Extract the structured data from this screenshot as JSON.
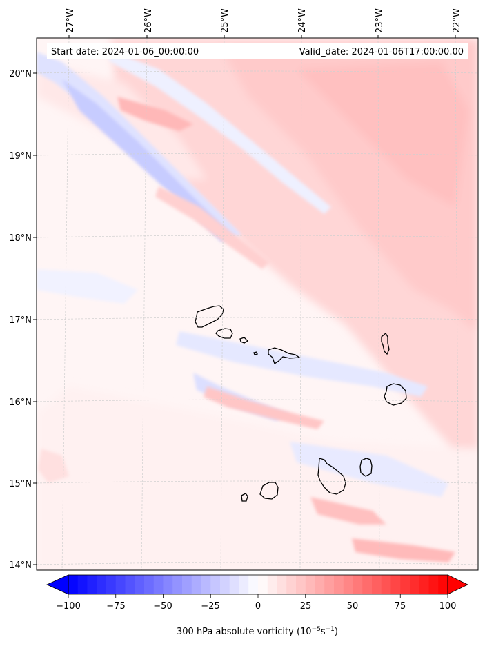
{
  "map": {
    "start_date": "Start date: 2024-01-06_00:00:00",
    "valid_date": "Valid_date: 2024-01-06T17:00:00.00",
    "lon_labels": [
      "27°W",
      "26°W",
      "25°W",
      "24°W",
      "23°W",
      "22°W"
    ],
    "lat_labels": [
      "20°N",
      "19°N",
      "18°N",
      "17°N",
      "16°N",
      "15°N",
      "14°N"
    ],
    "colorbar": {
      "ticks": [
        "−100",
        "−75",
        "−50",
        "−25",
        "0",
        "25",
        "50",
        "75",
        "100"
      ],
      "values": [
        -100,
        -75,
        -50,
        -25,
        0,
        25,
        50,
        75,
        100
      ],
      "label": "300 hPa absolute vorticity (10",
      "label_exp1": "−5",
      "label_mid": "s",
      "label_exp2": "−1",
      "label_end": ")",
      "min_color": "#0000ff",
      "mid_color": "#ffffff",
      "max_color": "#ff0000"
    }
  }
}
